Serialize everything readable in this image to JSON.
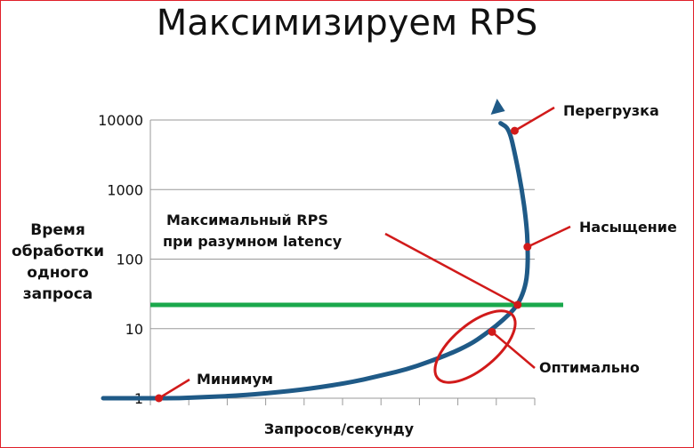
{
  "title": "Максимизируем RPS",
  "y_axis_label": [
    "Время",
    "обработки",
    "одного",
    "запроса"
  ],
  "x_axis_label": "Запросов/секунду",
  "colors": {
    "curve": "#1f5a87",
    "annotation": "#d11a1a",
    "threshold": "#1aa84c",
    "grid": "#9a9a9a"
  },
  "annotations": {
    "overload": "Перегрузка",
    "saturation": "Насыщение",
    "max_rps_line1": "Максимальный  RPS",
    "max_rps_line2": "при разумном latency",
    "optimal": "Оптимально",
    "minimum": "Минимум"
  },
  "chart_data": {
    "type": "line",
    "title": "Максимизируем RPS",
    "xlabel": "Запросов/секунду",
    "ylabel": "Время обработки одного запроса",
    "y_scale": "log",
    "ylim": [
      1,
      10000
    ],
    "y_ticks": [
      1,
      10,
      100,
      1000,
      10000
    ],
    "x_ticks_labeled": false,
    "grid": "horizontal",
    "threshold_y": 22,
    "series": [
      {
        "points": [
          [
            0,
            1.0
          ],
          [
            5,
            1.0
          ],
          [
            10,
            1.02
          ],
          [
            15,
            1.05
          ],
          [
            20,
            1.09
          ],
          [
            25,
            1.15
          ],
          [
            30,
            1.22
          ],
          [
            35,
            1.32
          ],
          [
            40,
            1.45
          ],
          [
            45,
            1.62
          ],
          [
            50,
            1.85
          ],
          [
            55,
            2.2
          ],
          [
            60,
            2.6
          ],
          [
            65,
            3.3
          ],
          [
            70,
            4.3
          ],
          [
            75,
            6.0
          ],
          [
            78,
            8.0
          ],
          [
            81,
            11.0
          ],
          [
            84,
            16.0
          ],
          [
            86,
            22.0
          ],
          [
            87.5,
            35.0
          ],
          [
            88.3,
            60.0
          ],
          [
            88.4,
            150.0
          ],
          [
            88.0,
            350.0
          ],
          [
            87.0,
            1000.0
          ],
          [
            85.5,
            3000.0
          ],
          [
            84.0,
            7500.0
          ],
          [
            82.0,
            20000.0
          ]
        ]
      }
    ],
    "marked_points": [
      {
        "key": "minimum",
        "x": 2,
        "y": 1.0
      },
      {
        "key": "optimal",
        "x": 80,
        "y": 9.0
      },
      {
        "key": "max_rps",
        "x": 86,
        "y": 22.0
      },
      {
        "key": "saturation",
        "x": 88.3,
        "y": 150.0
      },
      {
        "key": "overload",
        "x": 85.3,
        "y": 7000.0
      }
    ]
  }
}
